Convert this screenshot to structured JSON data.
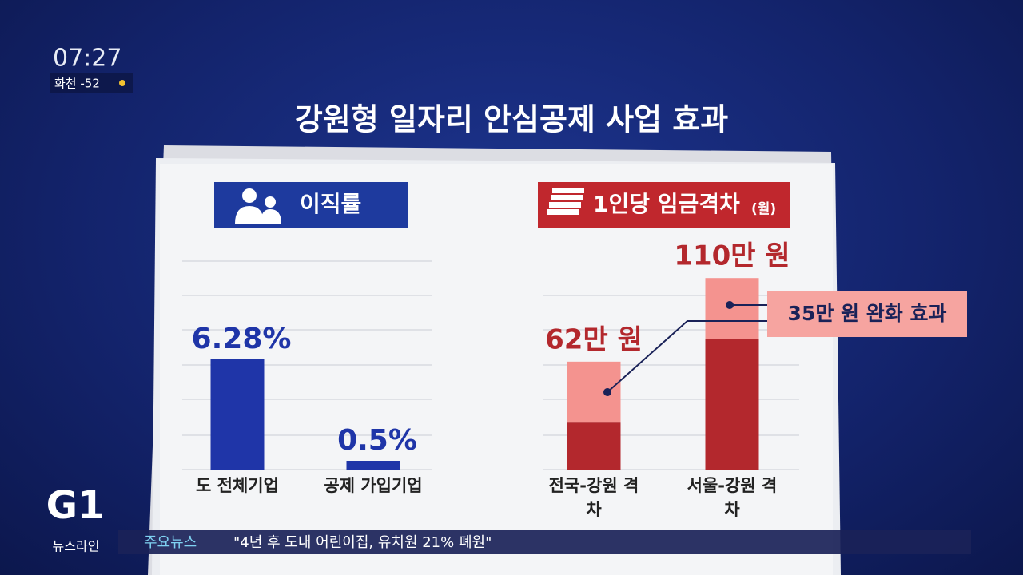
{
  "overlay": {
    "clock": "07:27",
    "weather": "화천 -52",
    "logo": "G1",
    "program": "뉴스라인",
    "ticker_label": "주요뉴스",
    "ticker_text": "\"4년 후 도내 어린이집, 유치원 21% 폐원\""
  },
  "title": "강원형 일자리 안심공제 사업 효과",
  "chart_data": [
    {
      "type": "bar",
      "title": "이직률",
      "categories": [
        "도 전체기업",
        "공제 가입기업"
      ],
      "values": [
        6.28,
        0.5
      ],
      "value_labels": [
        "6.28%",
        "0.5%"
      ],
      "color": "#1f35a8"
    },
    {
      "type": "stacked-bar",
      "title": "1인당 임금격차",
      "subtitle": "(월)",
      "categories": [
        "전국-강원 격차",
        "서울-강원 격차"
      ],
      "series": [
        {
          "color": "#b3282d",
          "values": [
            27,
            75
          ]
        },
        {
          "color": "#f4938f",
          "values": [
            35,
            35
          ]
        }
      ],
      "totals": [
        62,
        110
      ],
      "total_labels": [
        "62만 원",
        "110만 원"
      ],
      "annotation": "35만 원 완화 효과"
    }
  ]
}
